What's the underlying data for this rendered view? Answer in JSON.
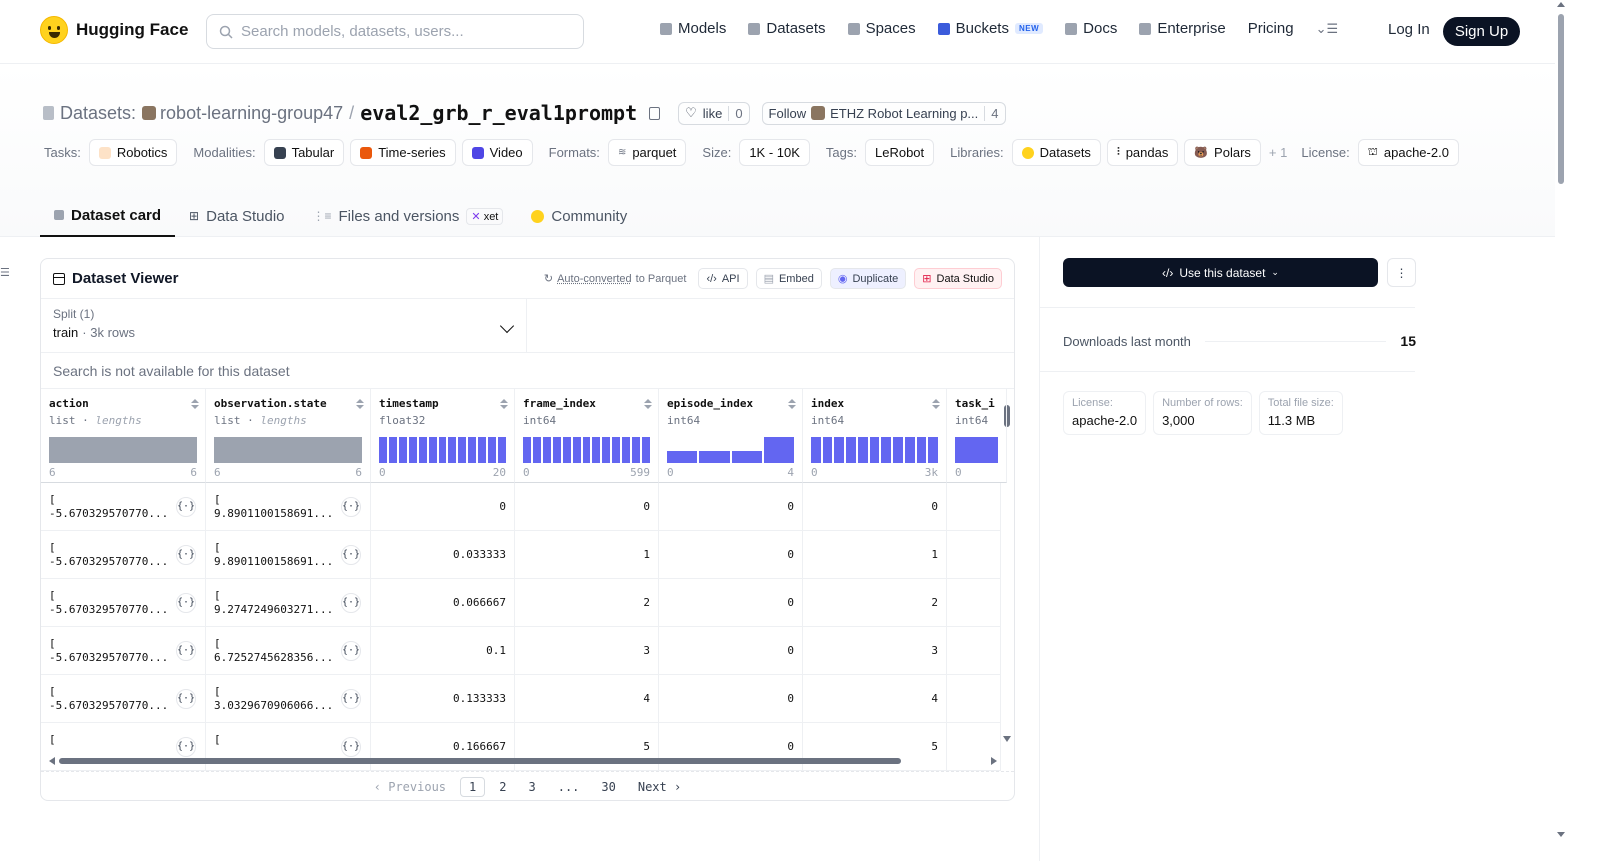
{
  "brand": {
    "name": "Hugging Face"
  },
  "search": {
    "placeholder": "Search models, datasets, users..."
  },
  "nav": {
    "items": [
      {
        "label": "Models",
        "icon": "models-icon"
      },
      {
        "label": "Datasets",
        "icon": "datasets-icon"
      },
      {
        "label": "Spaces",
        "icon": "spaces-icon"
      },
      {
        "label": "Buckets",
        "icon": "buckets-icon",
        "badge": "NEW"
      },
      {
        "label": "Docs",
        "icon": "docs-icon"
      },
      {
        "label": "Enterprise",
        "icon": "enterprise-icon"
      },
      {
        "label": "Pricing"
      }
    ],
    "login": "Log In",
    "signup": "Sign Up"
  },
  "header": {
    "section_label": "Datasets:",
    "owner": "robot-learning-group47",
    "separator": "/",
    "repo": "eval2_grb_r_eval1prompt",
    "like_label": "like",
    "like_count": "0",
    "follow_label": "Follow",
    "follow_org": "ETHZ Robot Learning p...",
    "follow_count": "4"
  },
  "tags": {
    "tasks_label": "Tasks:",
    "tasks": [
      "Robotics"
    ],
    "modalities_label": "Modalities:",
    "modalities": [
      "Tabular",
      "Time-series",
      "Video"
    ],
    "formats_label": "Formats:",
    "formats": [
      "parquet"
    ],
    "size_label": "Size:",
    "size": [
      "1K - 10K"
    ],
    "tags_label": "Tags:",
    "tags": [
      "LeRobot"
    ],
    "libraries_label": "Libraries:",
    "libraries": [
      "Datasets",
      "pandas",
      "Polars"
    ],
    "libraries_more": "+ 1",
    "license_label": "License:",
    "license": [
      "apache-2.0"
    ]
  },
  "tabs": [
    {
      "label": "Dataset card",
      "active": true,
      "icon": "dataset-card-icon"
    },
    {
      "label": "Data Studio",
      "icon": "data-studio-icon"
    },
    {
      "label": "Files and versions",
      "icon": "files-icon",
      "badge": "xet"
    },
    {
      "label": "Community",
      "icon": "community-icon"
    }
  ],
  "viewer": {
    "title": "Dataset Viewer",
    "auto_converted": "Auto-converted",
    "auto_converted_suffix": "to Parquet",
    "api_label": "API",
    "embed_label": "Embed",
    "duplicate_label": "Duplicate",
    "studio_label": "Data Studio",
    "split_label": "Split (1)",
    "split_value": "train",
    "split_rows": "3k rows",
    "search_note": "Search is not available for this dataset",
    "columns": [
      {
        "name": "action",
        "type": "list",
        "type_note": "lengths",
        "range": [
          "6",
          "6"
        ]
      },
      {
        "name": "observation.state",
        "type": "list",
        "type_note": "lengths",
        "range": [
          "6",
          "6"
        ]
      },
      {
        "name": "timestamp",
        "type": "float32",
        "range": [
          "0",
          "20"
        ]
      },
      {
        "name": "frame_index",
        "type": "int64",
        "range": [
          "0",
          "599"
        ]
      },
      {
        "name": "episode_index",
        "type": "int64",
        "range": [
          "0",
          "4"
        ]
      },
      {
        "name": "index",
        "type": "int64",
        "range": [
          "0",
          "3k"
        ]
      },
      {
        "name": "task_i",
        "type": "int64",
        "range": [
          "0",
          ""
        ]
      }
    ],
    "rows": [
      {
        "action": "-5.670329570770...",
        "state": "9.8901100158691...",
        "timestamp": "0",
        "frame_index": "0",
        "episode_index": "0",
        "index": "0"
      },
      {
        "action": "-5.670329570770...",
        "state": "9.8901100158691...",
        "timestamp": "0.033333",
        "frame_index": "1",
        "episode_index": "0",
        "index": "1"
      },
      {
        "action": "-5.670329570770...",
        "state": "9.2747249603271...",
        "timestamp": "0.066667",
        "frame_index": "2",
        "episode_index": "0",
        "index": "2"
      },
      {
        "action": "-5.670329570770...",
        "state": "6.7252745628356...",
        "timestamp": "0.1",
        "frame_index": "3",
        "episode_index": "0",
        "index": "3"
      },
      {
        "action": "-5.670329570770...",
        "state": "3.0329670906066...",
        "timestamp": "0.133333",
        "frame_index": "4",
        "episode_index": "0",
        "index": "4"
      },
      {
        "action": "",
        "state": "",
        "timestamp": "0.166667",
        "frame_index": "5",
        "episode_index": "0",
        "index": "5"
      }
    ],
    "list_open": "[",
    "pager": {
      "previous": "Previous",
      "pages": [
        "1",
        "2",
        "3",
        "...",
        "30"
      ],
      "current": "1",
      "next": "Next"
    }
  },
  "sidebar": {
    "use_button": "Use this dataset",
    "downloads_label": "Downloads last month",
    "downloads_value": "15",
    "stats": [
      {
        "label": "License:",
        "value": "apache-2.0"
      },
      {
        "label": "Number of rows:",
        "value": "3,000"
      },
      {
        "label": "Total file size:",
        "value": "11.3 MB"
      }
    ]
  },
  "colors": {
    "accent": "#6366f1",
    "dark": "#0b1324",
    "brand": "#ffd21e"
  }
}
